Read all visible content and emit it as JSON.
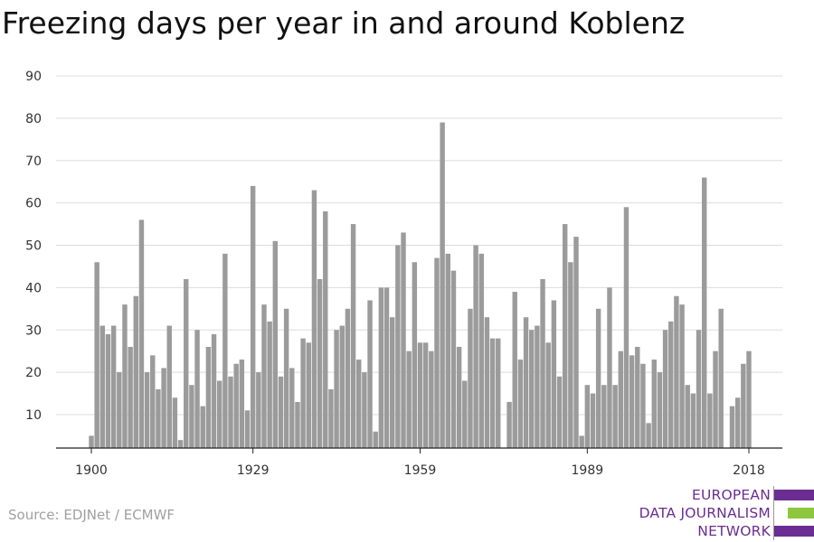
{
  "title": "Freezing days per year in and around Koblenz",
  "source": "Source: EDJNet / ECMWF",
  "logo": {
    "lines": [
      "EUROPEAN",
      "DATA JOURNALISM",
      "NETWORK"
    ],
    "colors": {
      "purple": "#6b2d91",
      "green": "#8dc63f"
    }
  },
  "colors": {
    "bar": "#9b9b9b",
    "grid": "#dddddd",
    "axis": "#222222",
    "tick_text": "#333333"
  },
  "chart_data": {
    "type": "bar",
    "title": "Freezing days per year in and around Koblenz",
    "xlabel": "",
    "ylabel": "",
    "ylim": [
      0,
      90
    ],
    "yticks": [
      10,
      20,
      30,
      40,
      50,
      60,
      70,
      80,
      90
    ],
    "xticks": [
      1900,
      1929,
      1959,
      1989,
      2018
    ],
    "grid": true,
    "x_start": 1900,
    "values": [
      5,
      46,
      31,
      29,
      31,
      20,
      36,
      26,
      38,
      56,
      20,
      24,
      16,
      21,
      31,
      14,
      4,
      42,
      17,
      30,
      12,
      26,
      29,
      18,
      48,
      19,
      22,
      23,
      11,
      64,
      20,
      36,
      32,
      51,
      19,
      35,
      21,
      13,
      28,
      27,
      63,
      42,
      58,
      16,
      30,
      31,
      35,
      55,
      23,
      20,
      37,
      6,
      40,
      40,
      33,
      50,
      53,
      25,
      46,
      27,
      27,
      25,
      47,
      79,
      48,
      44,
      26,
      18,
      35,
      50,
      48,
      33,
      28,
      28,
      0,
      13,
      39,
      23,
      33,
      30,
      31,
      42,
      27,
      37,
      19,
      55,
      46,
      52,
      5,
      17,
      15,
      35,
      17,
      40,
      17,
      25,
      59,
      24,
      26,
      22,
      8,
      23,
      20,
      30,
      32,
      38,
      36,
      17,
      15,
      30,
      66,
      15,
      25,
      35,
      0,
      12,
      14,
      22,
      25
    ]
  }
}
